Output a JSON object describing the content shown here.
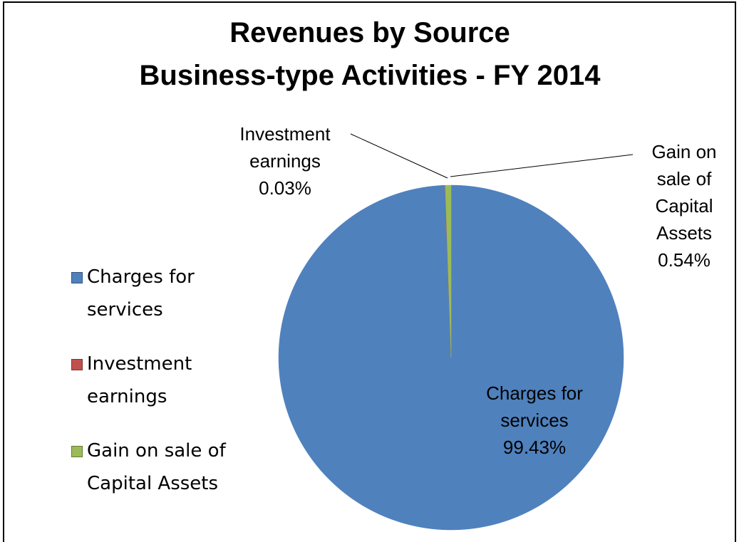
{
  "chart_data": {
    "type": "pie",
    "title": "Revenues by Source",
    "subtitle": "Business-type Activities - FY 2014",
    "categories": [
      "Charges for services",
      "Investment earnings",
      "Gain on sale of Capital Assets"
    ],
    "values": [
      99.43,
      0.03,
      0.54
    ],
    "value_labels": [
      "99.43%",
      "0.03%",
      "0.54%"
    ],
    "colors": [
      "#4f81bd",
      "#c0504d",
      "#9bbb59"
    ],
    "legend": "left"
  }
}
